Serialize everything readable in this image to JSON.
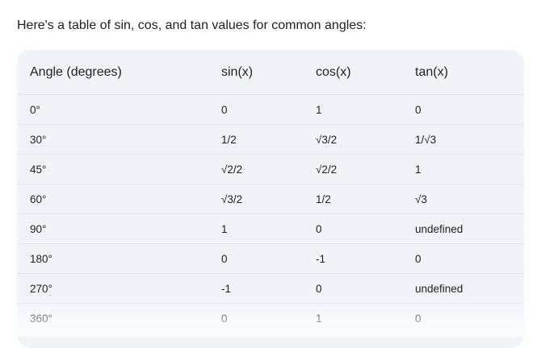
{
  "intro_text": "Here's a table of sin, cos, and tan values for common angles:",
  "table": {
    "headers": [
      "Angle (degrees)",
      "sin(x)",
      "cos(x)",
      "tan(x)"
    ],
    "rows": [
      [
        "0°",
        "0",
        "1",
        "0"
      ],
      [
        "30°",
        "1/2",
        "√3/2",
        "1/√3"
      ],
      [
        "45°",
        "√2/2",
        "√2/2",
        "1"
      ],
      [
        "60°",
        "√3/2",
        "1/2",
        "√3"
      ],
      [
        "90°",
        "1",
        "0",
        "undefined"
      ],
      [
        "180°",
        "0",
        "-1",
        "0"
      ],
      [
        "270°",
        "-1",
        "0",
        "undefined"
      ],
      [
        "360°",
        "0",
        "1",
        "0"
      ]
    ]
  },
  "colors": {
    "table_background": "#f0f4f9",
    "text": "#1f1f1f",
    "row_divider": "#e1e6ec"
  }
}
